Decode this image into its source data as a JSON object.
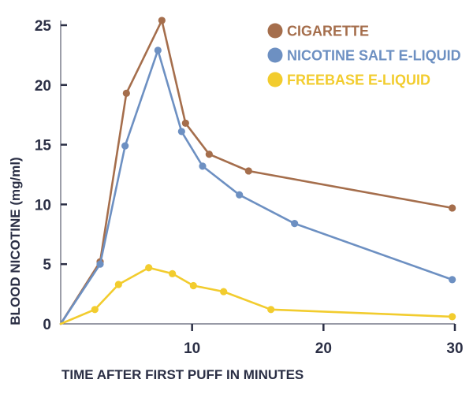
{
  "chart_data": {
    "type": "line",
    "xlabel": "TIME AFTER FIRST PUFF IN MINUTES",
    "ylabel": "BLOOD NICOTINE (mg/ml)",
    "xlim": [
      0,
      30
    ],
    "ylim": [
      0,
      25
    ],
    "x_ticks": [
      10,
      20,
      30
    ],
    "y_ticks": [
      0,
      5,
      10,
      15,
      20,
      25
    ],
    "grid": false,
    "legend_position": "top-right",
    "series": [
      {
        "name": "CIGARETTE",
        "color": "#a56e4c",
        "points": [
          {
            "x": 0,
            "y": 0
          },
          {
            "x": 3,
            "y": 5.2
          },
          {
            "x": 5,
            "y": 19.3
          },
          {
            "x": 7.7,
            "y": 25.4
          },
          {
            "x": 9.5,
            "y": 16.8
          },
          {
            "x": 11.3,
            "y": 14.2
          },
          {
            "x": 14.3,
            "y": 12.8
          },
          {
            "x": 29.8,
            "y": 9.7
          }
        ]
      },
      {
        "name": "NICOTINE SALT E-LIQUID",
        "color": "#6d90c2",
        "points": [
          {
            "x": 0,
            "y": 0
          },
          {
            "x": 3,
            "y": 5.0
          },
          {
            "x": 4.9,
            "y": 14.9
          },
          {
            "x": 7.4,
            "y": 22.9
          },
          {
            "x": 9.2,
            "y": 16.1
          },
          {
            "x": 10.8,
            "y": 13.2
          },
          {
            "x": 13.6,
            "y": 10.8
          },
          {
            "x": 17.8,
            "y": 8.4
          },
          {
            "x": 29.8,
            "y": 3.7
          }
        ]
      },
      {
        "name": "FREEBASE E-LIQUID",
        "color": "#f2cc2e",
        "points": [
          {
            "x": 0,
            "y": 0
          },
          {
            "x": 2.6,
            "y": 1.2
          },
          {
            "x": 4.4,
            "y": 3.3
          },
          {
            "x": 6.7,
            "y": 4.7
          },
          {
            "x": 8.5,
            "y": 4.2
          },
          {
            "x": 10.1,
            "y": 3.2
          },
          {
            "x": 12.4,
            "y": 2.7
          },
          {
            "x": 16.0,
            "y": 1.2
          },
          {
            "x": 29.8,
            "y": 0.6
          }
        ]
      }
    ]
  }
}
